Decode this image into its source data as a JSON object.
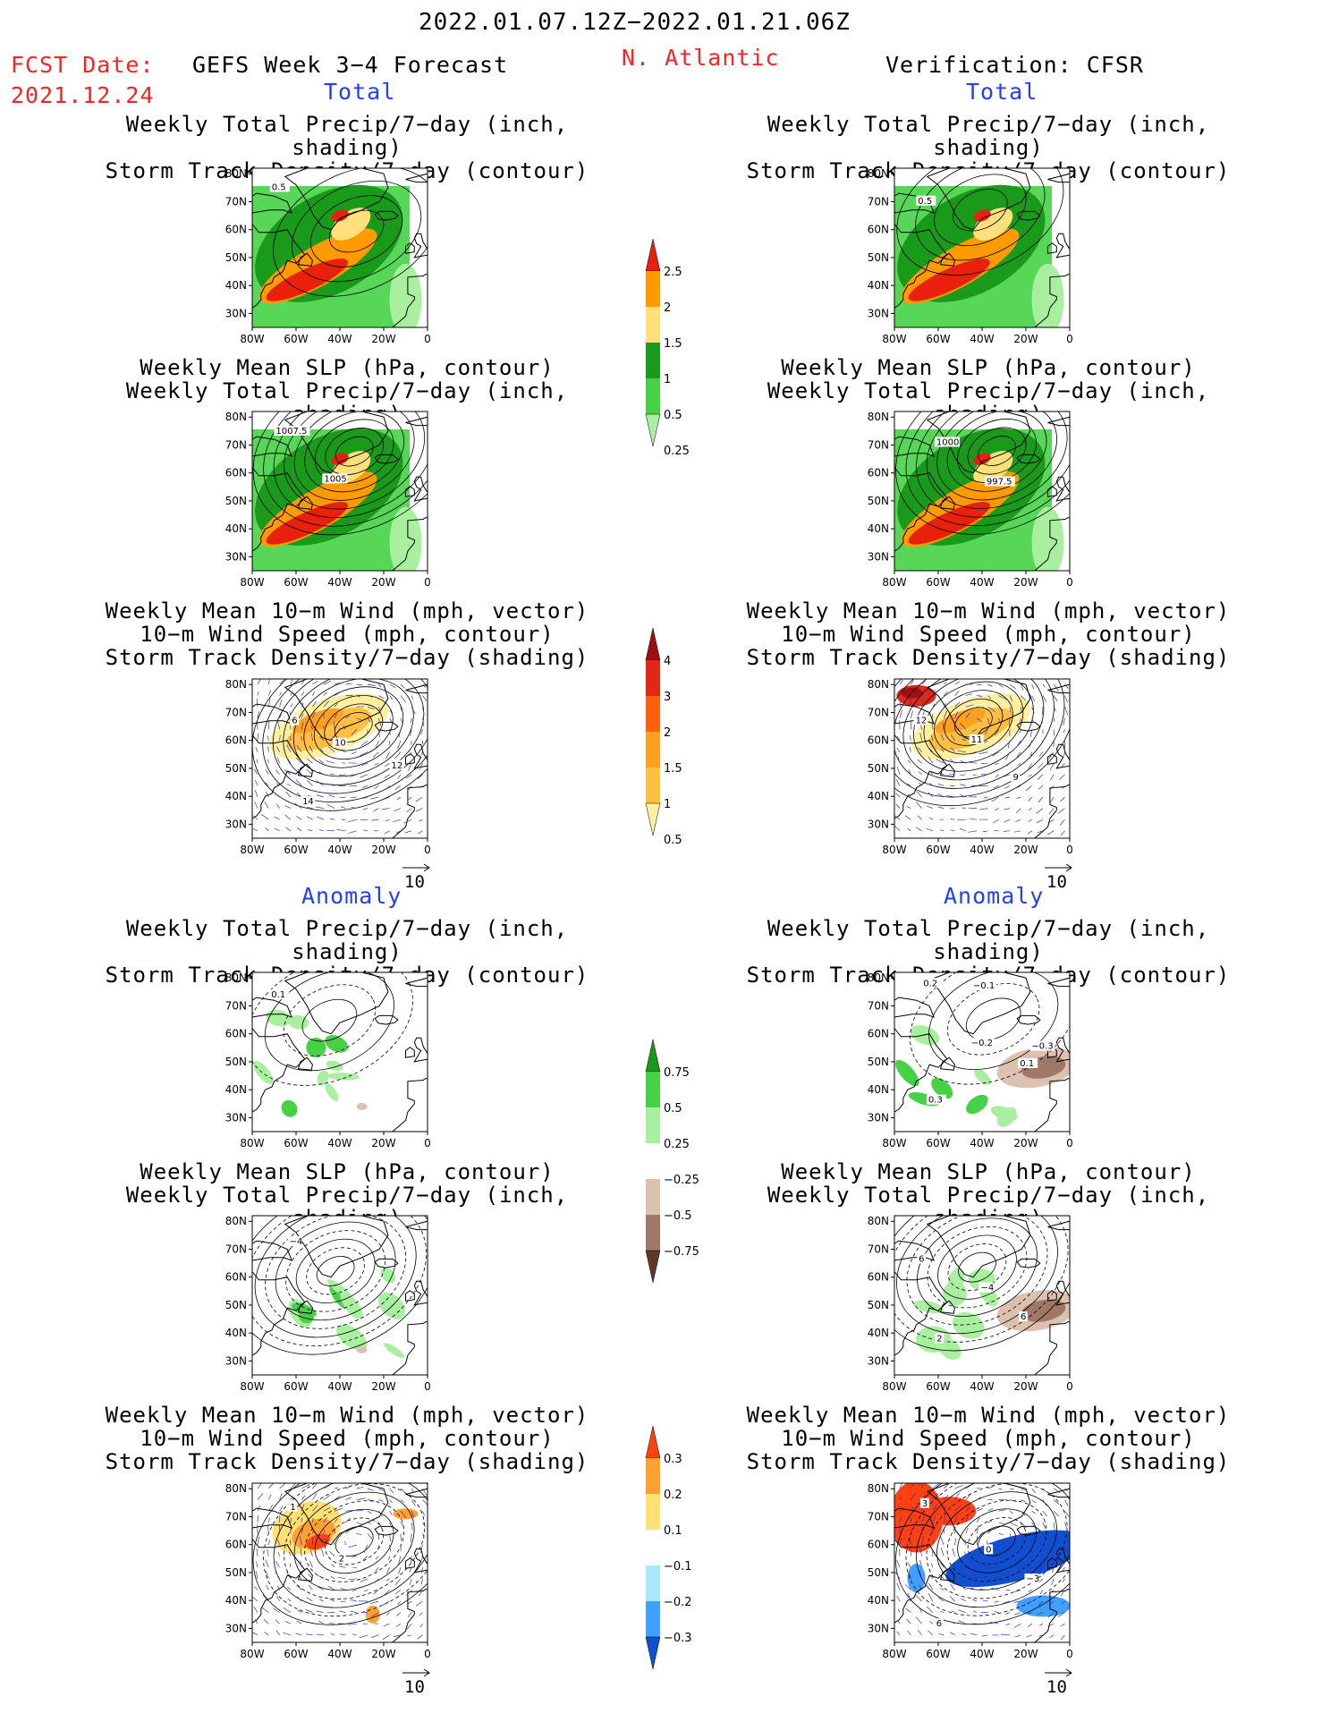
{
  "header": {
    "period": "2022.01.07.12Z−2022.01.21.06Z",
    "fcst_label": "FCST Date:",
    "fcst_date": "2021.12.24",
    "region": "N. Atlantic",
    "left_title": "GEFS Week 3−4 Forecast",
    "right_title": "Verification: CFSR"
  },
  "sections": {
    "total": "Total",
    "anomaly": "Anomaly"
  },
  "panel_titles": {
    "precip_storm": [
      "Weekly Total Precip/7−day (inch, shading)",
      "Storm Track Density/7−day (contour)"
    ],
    "slp_precip": [
      "Weekly Mean SLP (hPa, contour)",
      "Weekly Total Precip/7−day (inch, shading)"
    ],
    "wind_storm": [
      "Weekly Mean 10−m Wind (mph, vector)",
      "10−m Wind Speed (mph, contour)",
      "Storm Track Density/7−day (shading)"
    ]
  },
  "axes": {
    "lat_labels": [
      "80N",
      "70N",
      "60N",
      "50N",
      "40N",
      "30N"
    ],
    "lon_labels": [
      "80W",
      "60W",
      "40W",
      "20W",
      "0"
    ]
  },
  "vector_ref": "10",
  "colorbars": {
    "precip_total": {
      "labels": [
        "2.5",
        "2",
        "1.5",
        "1",
        "0.5",
        "0.25"
      ],
      "colors": [
        "#e8200c",
        "#ff9a00",
        "#ffe07a",
        "#1a9a1a",
        "#46d146",
        "#a8f0a0"
      ]
    },
    "storm_total": {
      "labels": [
        "4",
        "3",
        "2",
        "1.5",
        "1",
        "0.5"
      ],
      "colors": [
        "#a01010",
        "#e02818",
        "#ff6010",
        "#ffa020",
        "#ffc040",
        "#fff0a0"
      ]
    },
    "precip_anom": {
      "labels": [
        "0.75",
        "0.5",
        "0.25",
        "−0.25",
        "−0.5",
        "−0.75"
      ],
      "colors": [
        "#1a9a1a",
        "#46d146",
        "#a8f0a0",
        "#ffffff",
        "#dcc0b0",
        "#a07868",
        "#603828"
      ]
    },
    "storm_anom": {
      "labels": [
        "0.3",
        "0.2",
        "0.1",
        "−0.1",
        "−0.2",
        "−0.3"
      ],
      "colors": [
        "#ff4010",
        "#ffa030",
        "#ffe070",
        "#ffffff",
        "#a8e8ff",
        "#40a0ff",
        "#1050d0"
      ]
    }
  },
  "contour_labels": {
    "gefs_total_precip": [
      "0.5"
    ],
    "cfsr_total_precip": [
      "0.5"
    ],
    "gefs_total_slp": [
      "1007.5",
      "1005"
    ],
    "cfsr_total_slp": [
      "1000",
      "997.5"
    ],
    "gefs_total_wind": [
      "6",
      "10",
      "12",
      "14"
    ],
    "cfsr_total_wind": [
      "12",
      "11",
      "9"
    ],
    "gefs_anom_precip": [
      "0.1"
    ],
    "cfsr_anom_precip": [
      "0.2",
      "−0.2",
      "0.1",
      "0.3",
      "−0.1",
      "−0.3"
    ],
    "gefs_anom_slp": [
      "−4"
    ],
    "cfsr_anom_slp": [
      "6",
      "−4",
      "6",
      "2"
    ],
    "gefs_anom_wind": [
      "1",
      "2"
    ],
    "cfsr_anom_wind": [
      "3",
      "0",
      "−3",
      "6"
    ]
  }
}
